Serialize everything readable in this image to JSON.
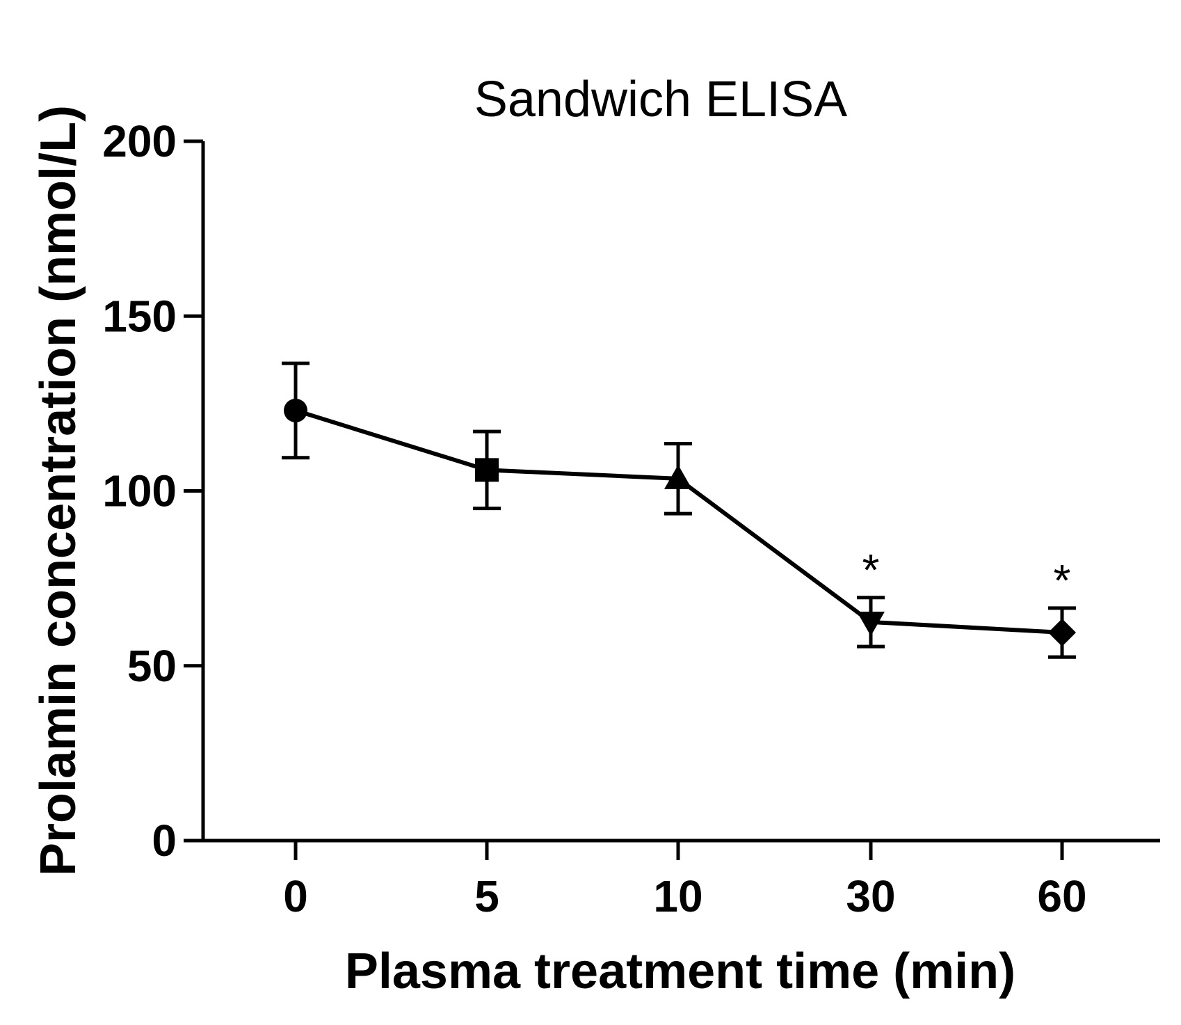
{
  "chart_data": {
    "type": "line",
    "title": "Sandwich ELISA",
    "xlabel": "Plasma treatment time (min)",
    "ylabel": "Prolamin concentration (nmol/L)",
    "ylim": [
      0,
      200
    ],
    "yticks": [
      "0",
      "50",
      "100",
      "150",
      "200"
    ],
    "categories": [
      "0",
      "5",
      "10",
      "30",
      "60"
    ],
    "series": [
      {
        "name": "Prolamin",
        "values": [
          123,
          106,
          103.5,
          62.5,
          59.5
        ],
        "error": [
          13.5,
          11,
          10,
          7,
          7
        ],
        "markers": [
          "circle",
          "square",
          "triangle-up",
          "triangle-down",
          "diamond"
        ],
        "color": "#000000"
      }
    ],
    "annotations": [
      {
        "category": "30",
        "text": "*"
      },
      {
        "category": "60",
        "text": "*"
      }
    ],
    "grid": false,
    "legend": "none"
  }
}
